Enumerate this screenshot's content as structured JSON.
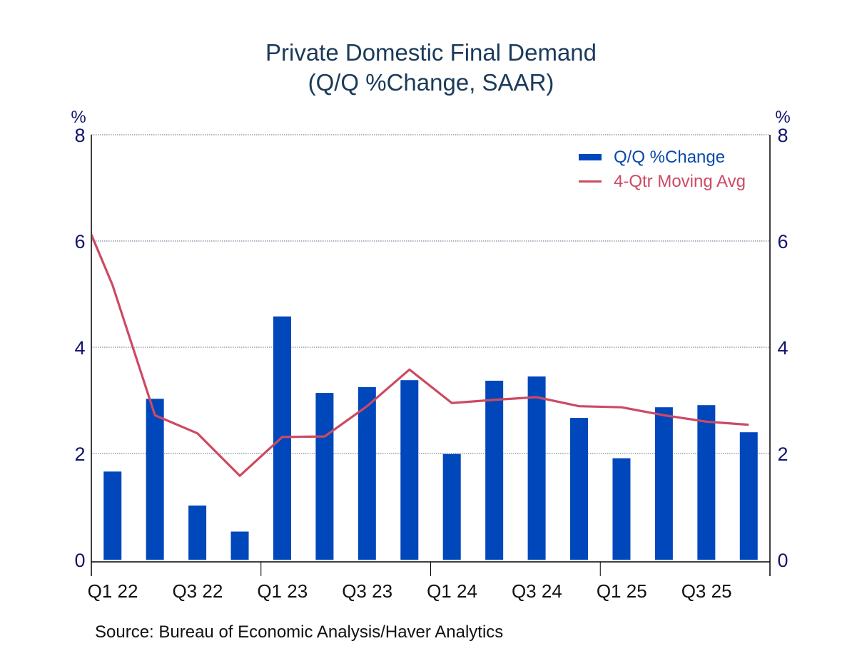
{
  "chart_data": {
    "type": "bar",
    "title": "Private Domestic Final Demand",
    "subtitle": "(Q/Q %Change, SAAR)",
    "xlabel": "",
    "ylabel": "%",
    "ylabel_right": "%",
    "ylim": [
      0,
      8
    ],
    "yticks": [
      "0",
      "2",
      "4",
      "6",
      "8"
    ],
    "grid": true,
    "legend_position": "top-right",
    "categories": [
      "Q1 22",
      "Q2 22",
      "Q3 22",
      "Q4 22",
      "Q1 23",
      "Q2 23",
      "Q3 23",
      "Q4 23",
      "Q1 24",
      "Q2 24",
      "Q3 24",
      "Q4 24",
      "Q1 25",
      "Q2 25",
      "Q3 25",
      "Q4 25"
    ],
    "xtick_labels": [
      "Q1 22",
      "Q3 22",
      "Q1 23",
      "Q3 23",
      "Q1 24",
      "Q3 24",
      "Q1 25",
      "Q3 25"
    ],
    "series": [
      {
        "name": "Q/Q %Change",
        "type": "bar",
        "color": "#0047bb",
        "values": [
          1.66,
          3.03,
          1.02,
          0.53,
          4.58,
          3.14,
          3.25,
          3.38,
          1.99,
          3.37,
          3.45,
          2.67,
          1.91,
          2.87,
          2.91,
          2.4
        ]
      },
      {
        "name": "4-Qtr Moving Avg",
        "type": "line",
        "color": "#cc4a62",
        "prior_value_offscreen": 7.07,
        "values": [
          5.17,
          2.72,
          2.38,
          1.58,
          2.31,
          2.32,
          2.89,
          3.58,
          2.95,
          3.01,
          3.06,
          2.89,
          2.87,
          2.72,
          2.6,
          2.54
        ]
      }
    ],
    "source": "Source:  Bureau of Economic Analysis/Haver Analytics"
  }
}
